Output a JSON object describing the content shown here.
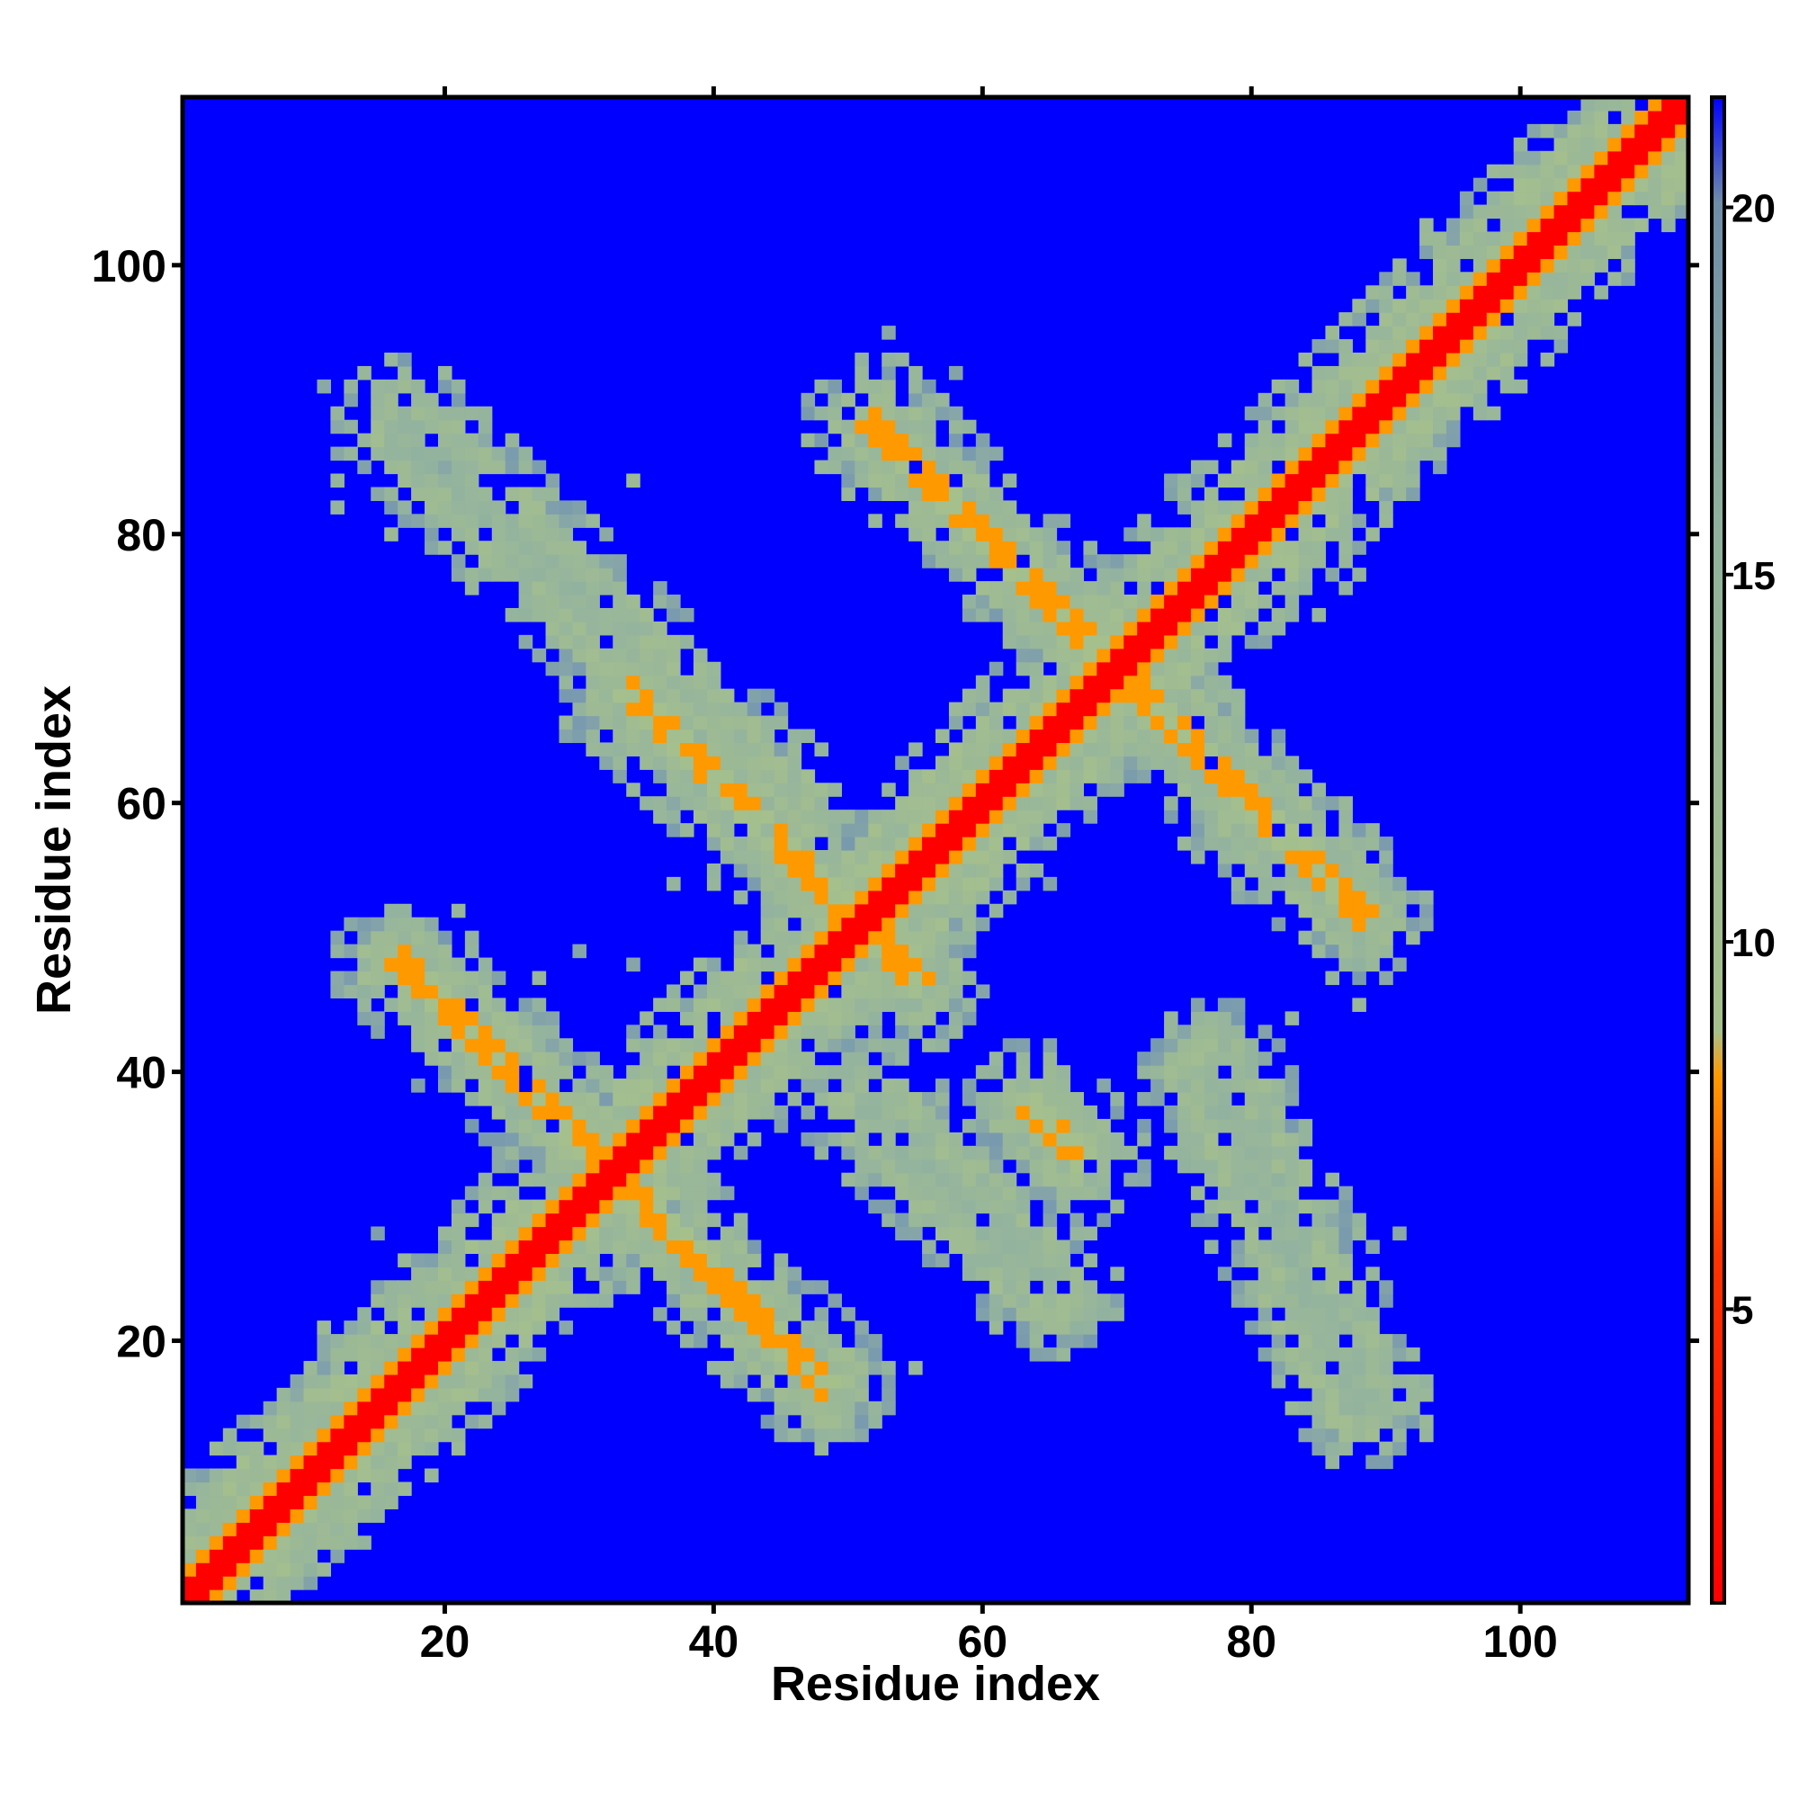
{
  "chart_data": {
    "type": "heatmap",
    "title": "",
    "xlabel": "Residue index",
    "ylabel": "Residue index",
    "xlim": [
      1,
      112
    ],
    "ylim": [
      1,
      112
    ],
    "x_ticks": [
      20,
      40,
      60,
      80,
      100
    ],
    "y_ticks": [
      20,
      40,
      60,
      80,
      100
    ],
    "colorbar": {
      "range": [
        1,
        21.5
      ],
      "ticks": [
        5,
        10,
        15,
        20
      ],
      "colors": {
        "low": "#ff0000",
        "mid_low": "#ff9900",
        "mid": "#a6c08c",
        "high": "#7f9bb0",
        "background": "#0000ff"
      }
    },
    "pattern": {
      "type": "distance-map",
      "background_value": 21.5,
      "bands": [
        {
          "kind": "diagonal",
          "x_start": 1,
          "y_start": 1,
          "x_end": 112,
          "y_end": 112,
          "core_value": 1.5
        },
        {
          "kind": "anti-diagonal",
          "x_start": 17,
          "y_start": 48,
          "x_end": 48,
          "y_end": 17,
          "core_value": 6
        },
        {
          "kind": "anti-diagonal",
          "x_start": 34,
          "y_start": 68,
          "x_end": 55,
          "y_end": 47,
          "core_value": 6.5
        },
        {
          "kind": "anti-diagonal",
          "x_start": 52,
          "y_start": 88,
          "x_end": 88,
          "y_end": 52,
          "core_value": 6
        },
        {
          "kind": "anti-diagonal",
          "x_start": 64,
          "y_start": 37,
          "x_end": 67,
          "y_end": 34,
          "core_value": 6.5
        },
        {
          "kind": "anti-diagonal",
          "x_start": 17,
          "y_start": 88,
          "x_end": 45,
          "y_end": 60,
          "core_value": 13
        },
        {
          "kind": "anti-diagonal",
          "x_start": 77,
          "y_start": 40,
          "x_end": 88,
          "y_end": 16,
          "core_value": 13
        },
        {
          "kind": "anti-diagonal",
          "x_start": 52,
          "y_start": 37,
          "x_end": 65,
          "y_end": 24,
          "core_value": 13
        }
      ]
    }
  }
}
